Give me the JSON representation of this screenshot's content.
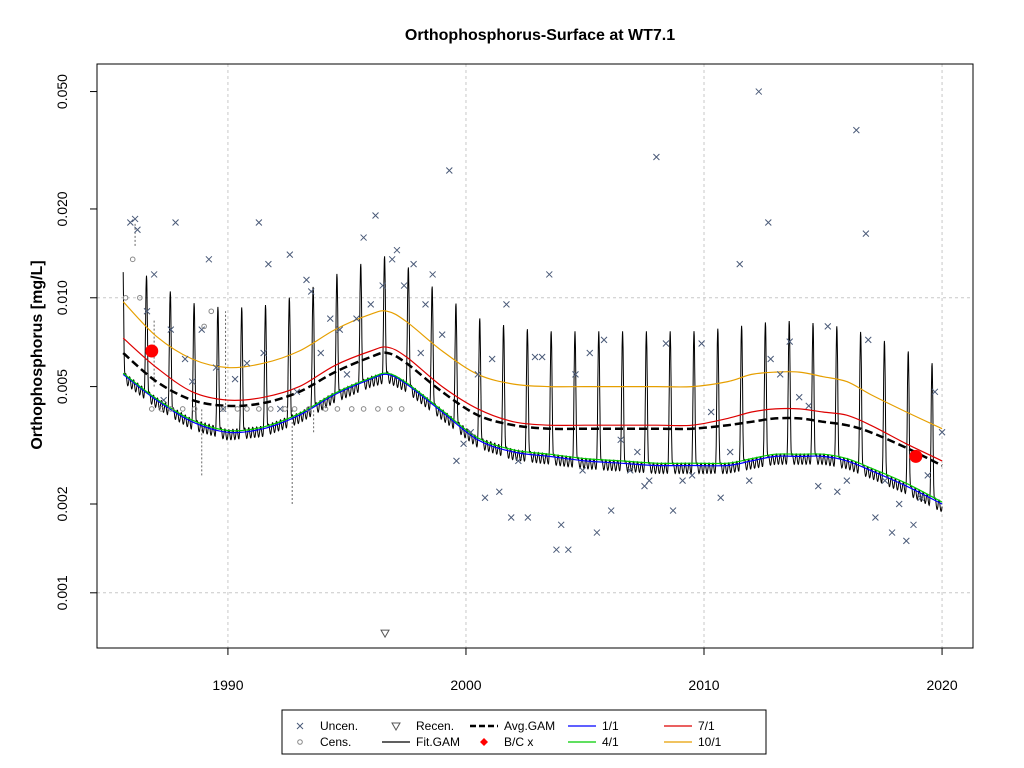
{
  "chart_data": {
    "type": "line",
    "title": "Orthophosphorus-Surface at WT7.1",
    "ylabel": "Orthophosphorus [mg/L]",
    "xlabel": "",
    "y_scale": "log",
    "xlim": [
      1984.5,
      2021.3
    ],
    "ylim": [
      0.00065,
      0.062
    ],
    "grid": true,
    "x_ticks": [
      1990,
      2000,
      2010,
      2020
    ],
    "x_tick_labels": [
      "1990",
      "2000",
      "2010",
      "2020"
    ],
    "y_ticks": [
      0.001,
      0.002,
      0.005,
      0.01,
      0.02,
      0.05
    ],
    "y_tick_labels": [
      "0.001",
      "0.002",
      "0.005",
      "0.010",
      "0.020",
      "0.050"
    ],
    "colors": {
      "avg": "#000000",
      "fit": "#000000",
      "bc": "#ff0000",
      "s1": "#0000ff",
      "s4": "#00cc00",
      "s7": "#dd0000",
      "s10": "#e69f00",
      "points": "#4a5a78",
      "grid": "#c8c8c8"
    },
    "series": [
      {
        "name": "1/1",
        "color": "#0000ff",
        "x": [
          1985.6,
          1987,
          1988.5,
          1990,
          1991.5,
          1993,
          1994.5,
          1996,
          1996.7,
          1997.5,
          1999,
          2000.5,
          2002,
          2003.5,
          2005,
          2006.5,
          2008,
          2009.5,
          2011,
          2012,
          2013,
          2014,
          2015,
          2016,
          2017,
          2018.5,
          2020
        ],
        "y": [
          0.0055,
          0.0045,
          0.0038,
          0.0035,
          0.0036,
          0.004,
          0.0047,
          0.0053,
          0.0055,
          0.0051,
          0.0041,
          0.0033,
          0.003,
          0.0029,
          0.0028,
          0.00275,
          0.0027,
          0.0027,
          0.0027,
          0.0028,
          0.0029,
          0.0029,
          0.0029,
          0.0028,
          0.0026,
          0.0023,
          0.002
        ]
      },
      {
        "name": "4/1",
        "color": "#00cc00",
        "x": [
          1985.6,
          1987,
          1988.5,
          1990,
          1991.5,
          1993,
          1994.5,
          1996,
          1996.7,
          1997.5,
          1999,
          2000.5,
          2002,
          2003.5,
          2005,
          2006.5,
          2008,
          2009.5,
          2011,
          2012,
          2013,
          2014,
          2015,
          2016,
          2017,
          2018.5,
          2020
        ],
        "y": [
          0.00555,
          0.00455,
          0.00385,
          0.00355,
          0.00365,
          0.00405,
          0.00475,
          0.00535,
          0.00555,
          0.00515,
          0.00415,
          0.00335,
          0.00305,
          0.00295,
          0.00285,
          0.0028,
          0.00275,
          0.00275,
          0.00275,
          0.00285,
          0.00295,
          0.00295,
          0.00295,
          0.00285,
          0.00265,
          0.00235,
          0.00203
        ]
      },
      {
        "name": "7/1",
        "color": "#dd0000",
        "x": [
          1985.6,
          1987,
          1988.5,
          1990,
          1991.5,
          1993,
          1994.5,
          1996,
          1996.7,
          1997.5,
          1999,
          2000.5,
          2002,
          2003.5,
          2005,
          2006.5,
          2008,
          2009.5,
          2011,
          2012,
          2013,
          2014,
          2015,
          2016,
          2017,
          2018.5,
          2020
        ],
        "y": [
          0.0073,
          0.0058,
          0.0048,
          0.0045,
          0.0046,
          0.005,
          0.0059,
          0.0066,
          0.0068,
          0.0063,
          0.005,
          0.0042,
          0.0038,
          0.0037,
          0.0037,
          0.0037,
          0.0037,
          0.0037,
          0.0039,
          0.0041,
          0.0042,
          0.0042,
          0.0041,
          0.004,
          0.0037,
          0.0032,
          0.0028
        ]
      },
      {
        "name": "10/1",
        "color": "#e69f00",
        "x": [
          1985.6,
          1987,
          1988.5,
          1990,
          1991.5,
          1993,
          1994.5,
          1996,
          1996.7,
          1997.5,
          1999,
          2000.5,
          2002,
          2003.5,
          2005,
          2006.5,
          2008,
          2009.5,
          2011,
          2012,
          2013,
          2014,
          2015,
          2016,
          2017,
          2018.5,
          2020
        ],
        "y": [
          0.0097,
          0.0074,
          0.0062,
          0.0058,
          0.006,
          0.0066,
          0.0078,
          0.0088,
          0.009,
          0.0083,
          0.0066,
          0.0055,
          0.0051,
          0.005,
          0.005,
          0.005,
          0.005,
          0.005,
          0.0052,
          0.0055,
          0.0056,
          0.0056,
          0.0054,
          0.0052,
          0.0047,
          0.0041,
          0.0036
        ]
      },
      {
        "name": "Avg.GAM",
        "color": "#000000",
        "x": [
          1985.6,
          1987,
          1988.5,
          1990,
          1991.5,
          1993,
          1994.5,
          1996,
          1996.7,
          1997.5,
          1999,
          2000.5,
          2002,
          2003.5,
          2005,
          2006.5,
          2008,
          2009.5,
          2011,
          2012,
          2013,
          2014,
          2015,
          2016,
          2017,
          2018.5,
          2020
        ],
        "y": [
          0.0065,
          0.0052,
          0.0045,
          0.0043,
          0.0044,
          0.0048,
          0.0056,
          0.0063,
          0.0065,
          0.006,
          0.0048,
          0.004,
          0.0037,
          0.0036,
          0.0036,
          0.0036,
          0.0036,
          0.0036,
          0.0037,
          0.0038,
          0.0039,
          0.0039,
          0.0038,
          0.0037,
          0.0035,
          0.0031,
          0.0027
        ]
      }
    ],
    "fit_gam": {
      "name": "Fit.GAM",
      "peak_month_fraction": 0.58,
      "peak_factor": 2.15,
      "low_factor": 0.83
    },
    "bc_points": {
      "name": "B/C x",
      "x": [
        1986.8,
        2018.9
      ],
      "y": [
        0.0066,
        0.0029
      ]
    },
    "uncensored": {
      "name": "Uncen.",
      "x": [
        1985.9,
        1986.1,
        1986.2,
        1986.6,
        1986.9,
        1987.3,
        1987.6,
        1987.8,
        1988.2,
        1988.5,
        1988.9,
        1989.2,
        1989.5,
        1989.8,
        1990.3,
        1990.8,
        1991.3,
        1991.5,
        1991.7,
        1992.2,
        1992.6,
        1992.9,
        1993.3,
        1993.5,
        1993.9,
        1994.3,
        1994.7,
        1995.0,
        1995.4,
        1995.7,
        1996.0,
        1996.2,
        1996.5,
        1996.9,
        1997.1,
        1997.4,
        1997.8,
        1998.1,
        1998.3,
        1998.6,
        1999.0,
        1999.3,
        1999.6,
        1999.9,
        2000.2,
        2000.5,
        2000.8,
        2001.1,
        2001.4,
        2001.7,
        2001.9,
        2002.2,
        2002.6,
        2002.9,
        2003.2,
        2003.5,
        2003.8,
        2004.0,
        2004.3,
        2004.6,
        2004.9,
        2005.2,
        2005.5,
        2005.8,
        2006.1,
        2006.5,
        2006.9,
        2007.2,
        2007.5,
        2007.7,
        2008.0,
        2008.4,
        2008.7,
        2009.1,
        2009.5,
        2009.9,
        2010.3,
        2010.7,
        2011.1,
        2011.5,
        2011.9,
        2012.3,
        2012.7,
        2012.8,
        2013.2,
        2013.6,
        2014.0,
        2014.4,
        2014.8,
        2015.2,
        2015.6,
        2016.0,
        2016.4,
        2016.8,
        2016.9,
        2017.2,
        2017.6,
        2017.9,
        2018.2,
        2018.5,
        2018.8,
        2019.1,
        2019.4,
        2019.7,
        2020.0
      ],
      "y": [
        0.018,
        0.0185,
        0.017,
        0.009,
        0.012,
        0.0045,
        0.0078,
        0.018,
        0.0062,
        0.0052,
        0.0078,
        0.0135,
        0.0058,
        0.0042,
        0.0053,
        0.006,
        0.018,
        0.0065,
        0.013,
        0.0042,
        0.014,
        0.0048,
        0.0115,
        0.0105,
        0.0065,
        0.0085,
        0.0078,
        0.0055,
        0.0085,
        0.016,
        0.0095,
        0.019,
        0.011,
        0.0135,
        0.0145,
        0.011,
        0.013,
        0.0065,
        0.0095,
        0.012,
        0.0075,
        0.027,
        0.0028,
        0.0032,
        0.0035,
        0.0055,
        0.0021,
        0.0062,
        0.0022,
        0.0095,
        0.0018,
        0.0028,
        0.0018,
        0.0063,
        0.0063,
        0.012,
        0.0014,
        0.0017,
        0.0014,
        0.0055,
        0.0026,
        0.0065,
        0.0016,
        0.0072,
        0.0019,
        0.0033,
        0.0026,
        0.003,
        0.0023,
        0.0024,
        0.03,
        0.007,
        0.0019,
        0.0024,
        0.0025,
        0.007,
        0.0041,
        0.0021,
        0.003,
        0.013,
        0.0024,
        0.05,
        0.018,
        0.0062,
        0.0055,
        0.0071,
        0.0046,
        0.0043,
        0.0023,
        0.008,
        0.0022,
        0.0024,
        0.037,
        0.0165,
        0.0072,
        0.0018,
        0.0024,
        0.0016,
        0.002,
        0.0015,
        0.0017,
        0.0021,
        0.0025,
        0.0048,
        0.0035
      ]
    },
    "censored": {
      "name": "Cens.",
      "x": [
        1985.7,
        1986.0,
        1986.3,
        1986.8,
        1987.2,
        1987.6,
        1988.1,
        1988.6,
        1989.0,
        1989.3,
        1989.8,
        1990.4,
        1990.8,
        1991.3,
        1991.8,
        1992.4,
        1992.8,
        1993.4,
        1994.1,
        1994.6,
        1995.2,
        1995.7,
        1996.3,
        1996.8,
        1997.3
      ],
      "y": [
        0.01,
        0.0135,
        0.01,
        0.0042,
        0.0042,
        0.0042,
        0.0042,
        0.0042,
        0.008,
        0.009,
        0.0042,
        0.0042,
        0.0042,
        0.0042,
        0.0042,
        0.0042,
        0.0042,
        0.0042,
        0.0042,
        0.0042,
        0.0042,
        0.0042,
        0.0042,
        0.0042,
        0.0042
      ]
    },
    "censored_ranges": {
      "x": [
        1986.1,
        1989.9,
        1988.9,
        1992.7,
        1993.6,
        1986.9
      ],
      "y_low": [
        0.015,
        0.0042,
        0.0025,
        0.002,
        0.0035,
        0.005
      ],
      "y_high": [
        0.018,
        0.009,
        0.0042,
        0.0042,
        0.0042,
        0.0085
      ]
    },
    "recensored": {
      "name": "Recen.",
      "x": [
        1996.6
      ],
      "y": [
        0.00073
      ]
    },
    "legend": {
      "position": "bottom",
      "entries": [
        "Uncen.",
        "Cens.",
        "Recen.",
        "Fit.GAM",
        "Avg.GAM",
        "B/C x",
        "1/1",
        "4/1",
        "7/1",
        "10/1"
      ]
    }
  }
}
